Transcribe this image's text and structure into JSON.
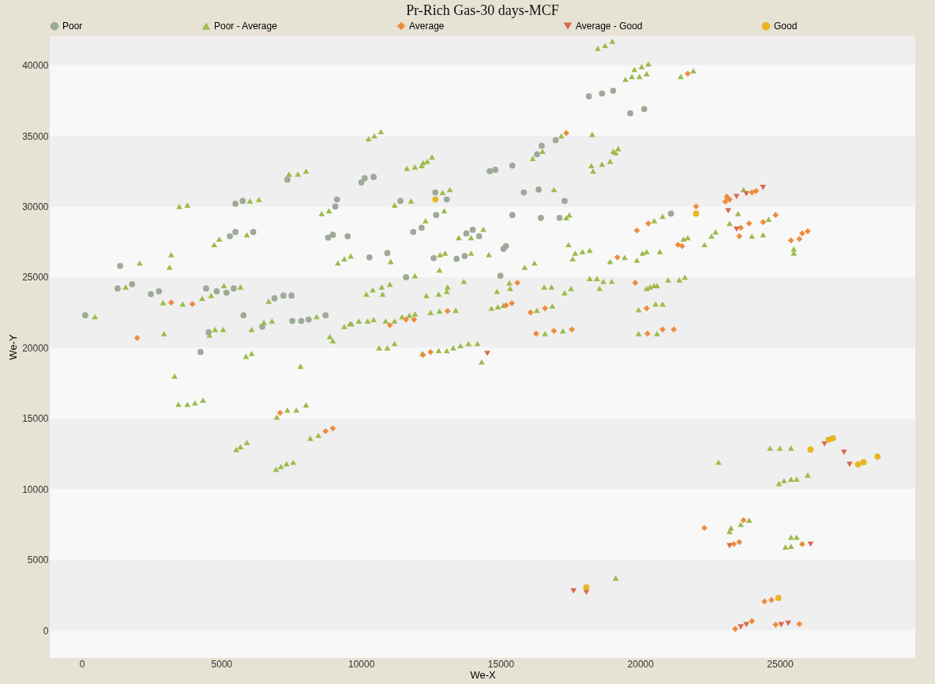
{
  "chart_data": {
    "type": "scatter",
    "title": "Pr-Rich Gas-30 days-MCF",
    "xlabel": "We-X",
    "ylabel": "We-Y",
    "xlim": [
      -1150,
      29850
    ],
    "ylim": [
      -1950,
      42100
    ],
    "xticks": [
      0,
      5000,
      10000,
      15000,
      20000,
      25000
    ],
    "yticks": [
      0,
      5000,
      10000,
      15000,
      20000,
      25000,
      30000,
      35000,
      40000
    ],
    "legend": "top",
    "bands": [
      {
        "axis": "y",
        "from": 0,
        "to": 5000,
        "color": "#efefef"
      },
      {
        "axis": "y",
        "from": 10000,
        "to": 15000,
        "color": "#efefef"
      },
      {
        "axis": "y",
        "from": 20000,
        "to": 25000,
        "color": "#efefef"
      },
      {
        "axis": "y",
        "from": 30000,
        "to": 35000,
        "color": "#efefef"
      },
      {
        "axis": "y",
        "from": 40000,
        "to": 42100,
        "color": "#efefef"
      }
    ],
    "series": [
      {
        "name": "Poor",
        "color": "#9eaa98",
        "marker": "circle",
        "x": [
          7360,
          5500,
          5760,
          9140,
          9080,
          5300,
          5500,
          6140,
          8820,
          8990,
          9520,
          1370,
          1280,
          1800,
          2470,
          2760,
          4450,
          4830,
          5180,
          5440,
          6900,
          7220,
          7510,
          120,
          5790,
          6460,
          7540,
          7860,
          8120,
          8730,
          4540,
          4250,
          10010,
          10130,
          10450,
          14610,
          14810,
          15420,
          16470,
          16300,
          16970,
          18160,
          18630,
          19030,
          19640,
          20140,
          12660,
          13070,
          11410,
          15830,
          16360,
          17290,
          12690,
          11870,
          12170,
          15420,
          16440,
          17110,
          13770,
          14000,
          14230,
          15100,
          15190,
          10300,
          10940,
          12600,
          13420,
          13710,
          11610,
          14990,
          21100
        ],
        "values": [
          31900,
          30200,
          30400,
          30500,
          30000,
          27900,
          28200,
          28200,
          27800,
          28000,
          27900,
          25800,
          24200,
          24500,
          23800,
          24000,
          24200,
          24000,
          23900,
          24200,
          23500,
          23700,
          23700,
          22300,
          22300,
          21500,
          21900,
          21900,
          22000,
          22300,
          21100,
          19700,
          31700,
          32000,
          32100,
          32500,
          32600,
          32900,
          34300,
          33700,
          34700,
          37800,
          38000,
          38200,
          36600,
          36900,
          31000,
          30500,
          30400,
          31000,
          31200,
          30400,
          29400,
          28200,
          28500,
          29400,
          29200,
          29200,
          28100,
          28350,
          27900,
          27000,
          27200,
          26400,
          26700,
          26350,
          26300,
          26500,
          25000,
          25100,
          29500
        ]
      },
      {
        "name": "Poor - Average",
        "color": "#9dbb4a",
        "marker": "triangle",
        "x": [
          7420,
          7740,
          8030,
          3490,
          3780,
          6020,
          6340,
          8590,
          8850,
          4740,
          4920,
          5910,
          9170,
          9400,
          9630,
          2070,
          3200,
          3140,
          1570,
          2910,
          3610,
          4310,
          4630,
          5090,
          5680,
          6690,
          470,
          6080,
          6520,
          6810,
          8410,
          9400,
          9660,
          2940,
          4770,
          5060,
          4570,
          8880,
          8990,
          5880,
          6080,
          7830,
          3320,
          3460,
          3780,
          4050,
          4340,
          6980,
          7360,
          7680,
          8030,
          8180,
          8470,
          5530,
          5680,
          5910,
          6960,
          7130,
          7330,
          7570,
          18480,
          18740,
          19000,
          19470,
          19700,
          19970,
          19790,
          20050,
          20290,
          20230,
          10270,
          10480,
          10710,
          11640,
          11930,
          12170,
          12370,
          12540,
          12220,
          16150,
          16500,
          17170,
          18280,
          18250,
          18310,
          18630,
          18920,
          19030,
          19210,
          19120,
          12920,
          13180,
          11200,
          11790,
          16910,
          12980,
          12310,
          17350,
          17460,
          13500,
          13940,
          14380,
          14580,
          17430,
          17670,
          17930,
          18190,
          17580,
          11060,
          12830,
          13010,
          13940,
          12810,
          11930,
          15860,
          16210,
          13680,
          15310,
          15340,
          18920,
          19440,
          19880,
          20080,
          20230,
          10190,
          10420,
          10740,
          11030,
          10770,
          12340,
          12780,
          13070,
          13100,
          14870,
          16560,
          16820,
          17290,
          17520,
          18190,
          18450,
          18680,
          18980,
          18540,
          20230,
          20490,
          9600,
          9920,
          10240,
          10450,
          10880,
          11200,
          11470,
          11730,
          11930,
          12490,
          12810,
          13390,
          14670,
          14900,
          15100,
          16300,
          16850,
          16590,
          17230,
          19940,
          19940,
          10650,
          10940,
          11200,
          12190,
          12780,
          13070,
          13300,
          13560,
          13850,
          14170,
          14320,
          19120,
          21450,
          21900,
          23700,
          20800,
          20500,
          23500,
          23200,
          24000,
          24400,
          24600,
          25500,
          25500,
          21550,
          21700,
          22300,
          22550,
          22700,
          20700,
          20350,
          20600,
          21000,
          21400,
          21600,
          20550,
          20800,
          20600,
          24650,
          25000,
          25400,
          22800,
          24970,
          25150,
          25400,
          25600,
          26000,
          23200,
          23250,
          23600,
          23900,
          25400,
          25600,
          25200,
          25400
        ],
        "values": [
          32300,
          32300,
          32500,
          30000,
          30100,
          30400,
          30500,
          29500,
          29700,
          27300,
          27700,
          28000,
          26000,
          26300,
          26500,
          26000,
          26600,
          25700,
          24300,
          23200,
          23100,
          23500,
          23700,
          24400,
          24300,
          23300,
          22200,
          21300,
          21800,
          21900,
          22200,
          21500,
          21700,
          21000,
          21300,
          21300,
          20900,
          20800,
          20500,
          19400,
          19600,
          18700,
          18000,
          16000,
          16000,
          16100,
          16300,
          15100,
          15600,
          15600,
          15960,
          13600,
          13800,
          12800,
          13000,
          13300,
          11400,
          11600,
          11800,
          11900,
          41200,
          41400,
          41700,
          39000,
          39200,
          39200,
          39700,
          39900,
          40100,
          39400,
          34800,
          35000,
          35300,
          32700,
          32800,
          32900,
          33200,
          33500,
          33100,
          33400,
          33900,
          35000,
          35100,
          32900,
          32500,
          33000,
          33200,
          33900,
          34100,
          33800,
          31000,
          31200,
          30100,
          30400,
          31200,
          29700,
          29000,
          29200,
          29400,
          27800,
          27800,
          28400,
          26600,
          27300,
          26700,
          26800,
          26900,
          26300,
          26100,
          26600,
          26700,
          26700,
          25500,
          25100,
          25700,
          26000,
          24700,
          24600,
          24200,
          26100,
          26400,
          26200,
          26700,
          26800,
          23800,
          24100,
          24300,
          24500,
          23800,
          23700,
          23800,
          24000,
          24300,
          24000,
          24300,
          24300,
          23900,
          24200,
          24900,
          24900,
          24700,
          24700,
          24200,
          24200,
          24400,
          21700,
          21900,
          21900,
          22000,
          21900,
          21900,
          22200,
          22300,
          22400,
          22500,
          22600,
          22650,
          22800,
          22900,
          23000,
          22650,
          22960,
          21000,
          21200,
          22700,
          21000,
          20000,
          20000,
          20300,
          19600,
          19800,
          19800,
          20000,
          20150,
          20300,
          20300,
          19000,
          3700,
          39200,
          39600,
          31200,
          29300,
          29000,
          29500,
          28800,
          27900,
          28000,
          29100,
          26700,
          27000,
          27700,
          27800,
          27300,
          27900,
          28200,
          26800,
          24300,
          24400,
          24800,
          24800,
          25000,
          23100,
          23100,
          21000,
          12900,
          12900,
          12900,
          11900,
          10400,
          10600,
          10700,
          10700,
          11000,
          7000,
          7250,
          7500,
          7800,
          6600,
          6600,
          5900,
          5950
        ]
      },
      {
        "name": "Average",
        "color": "#ee8c3c",
        "marker": "diamond",
        "x": [
          3200,
          3960,
          1980,
          7100,
          8730,
          8990,
          17350,
          19880,
          20290,
          15600,
          19180,
          19820,
          11030,
          11610,
          11900,
          13100,
          15190,
          15400,
          16070,
          16590,
          16270,
          16910,
          17550,
          20230,
          20260,
          12220,
          12490,
          21700,
          23100,
          23050,
          23200,
          24000,
          24150,
          22000,
          23600,
          23900,
          23550,
          24400,
          24850,
          25400,
          25700,
          25800,
          26000,
          21350,
          21500,
          20800,
          21200,
          22300,
          23700,
          23350,
          23550,
          25800,
          24450,
          24700,
          23400,
          24000,
          24850,
          25700
        ],
        "values": [
          23200,
          23100,
          20700,
          15400,
          14100,
          14300,
          35200,
          28300,
          28800,
          24600,
          26400,
          24600,
          21600,
          22000,
          22000,
          22600,
          23000,
          23150,
          22500,
          22800,
          21000,
          21200,
          21300,
          22800,
          21000,
          19500,
          19700,
          39400,
          30700,
          30350,
          30500,
          31000,
          31100,
          30000,
          28500,
          28800,
          27900,
          28900,
          29400,
          27600,
          27700,
          28100,
          28250,
          27300,
          27200,
          21300,
          21300,
          7250,
          7800,
          6100,
          6250,
          6100,
          2050,
          2150,
          100,
          650,
          400,
          450
        ]
      },
      {
        "name": "Average - Good",
        "color": "#d9694c",
        "marker": "triangle-down",
        "x": [
          14520,
          17610,
          18070,
          23450,
          23800,
          24400,
          23150,
          23450,
          26600,
          27300,
          27500,
          23200,
          26100,
          23600,
          23800,
          25050,
          25300
        ],
        "values": [
          19600,
          2800,
          2700,
          30700,
          30900,
          31350,
          29700,
          28400,
          13200,
          12600,
          11750,
          6000,
          6100,
          250,
          400,
          400,
          500
        ]
      },
      {
        "name": "Good",
        "color": "#e8b520",
        "marker": "circle",
        "x": [
          12660,
          18070,
          22000,
          26100,
          26750,
          26900,
          27800,
          28000,
          28500,
          24950
        ],
        "values": [
          30500,
          3050,
          29500,
          12800,
          13500,
          13600,
          11750,
          11900,
          12300,
          2300
        ]
      }
    ]
  }
}
